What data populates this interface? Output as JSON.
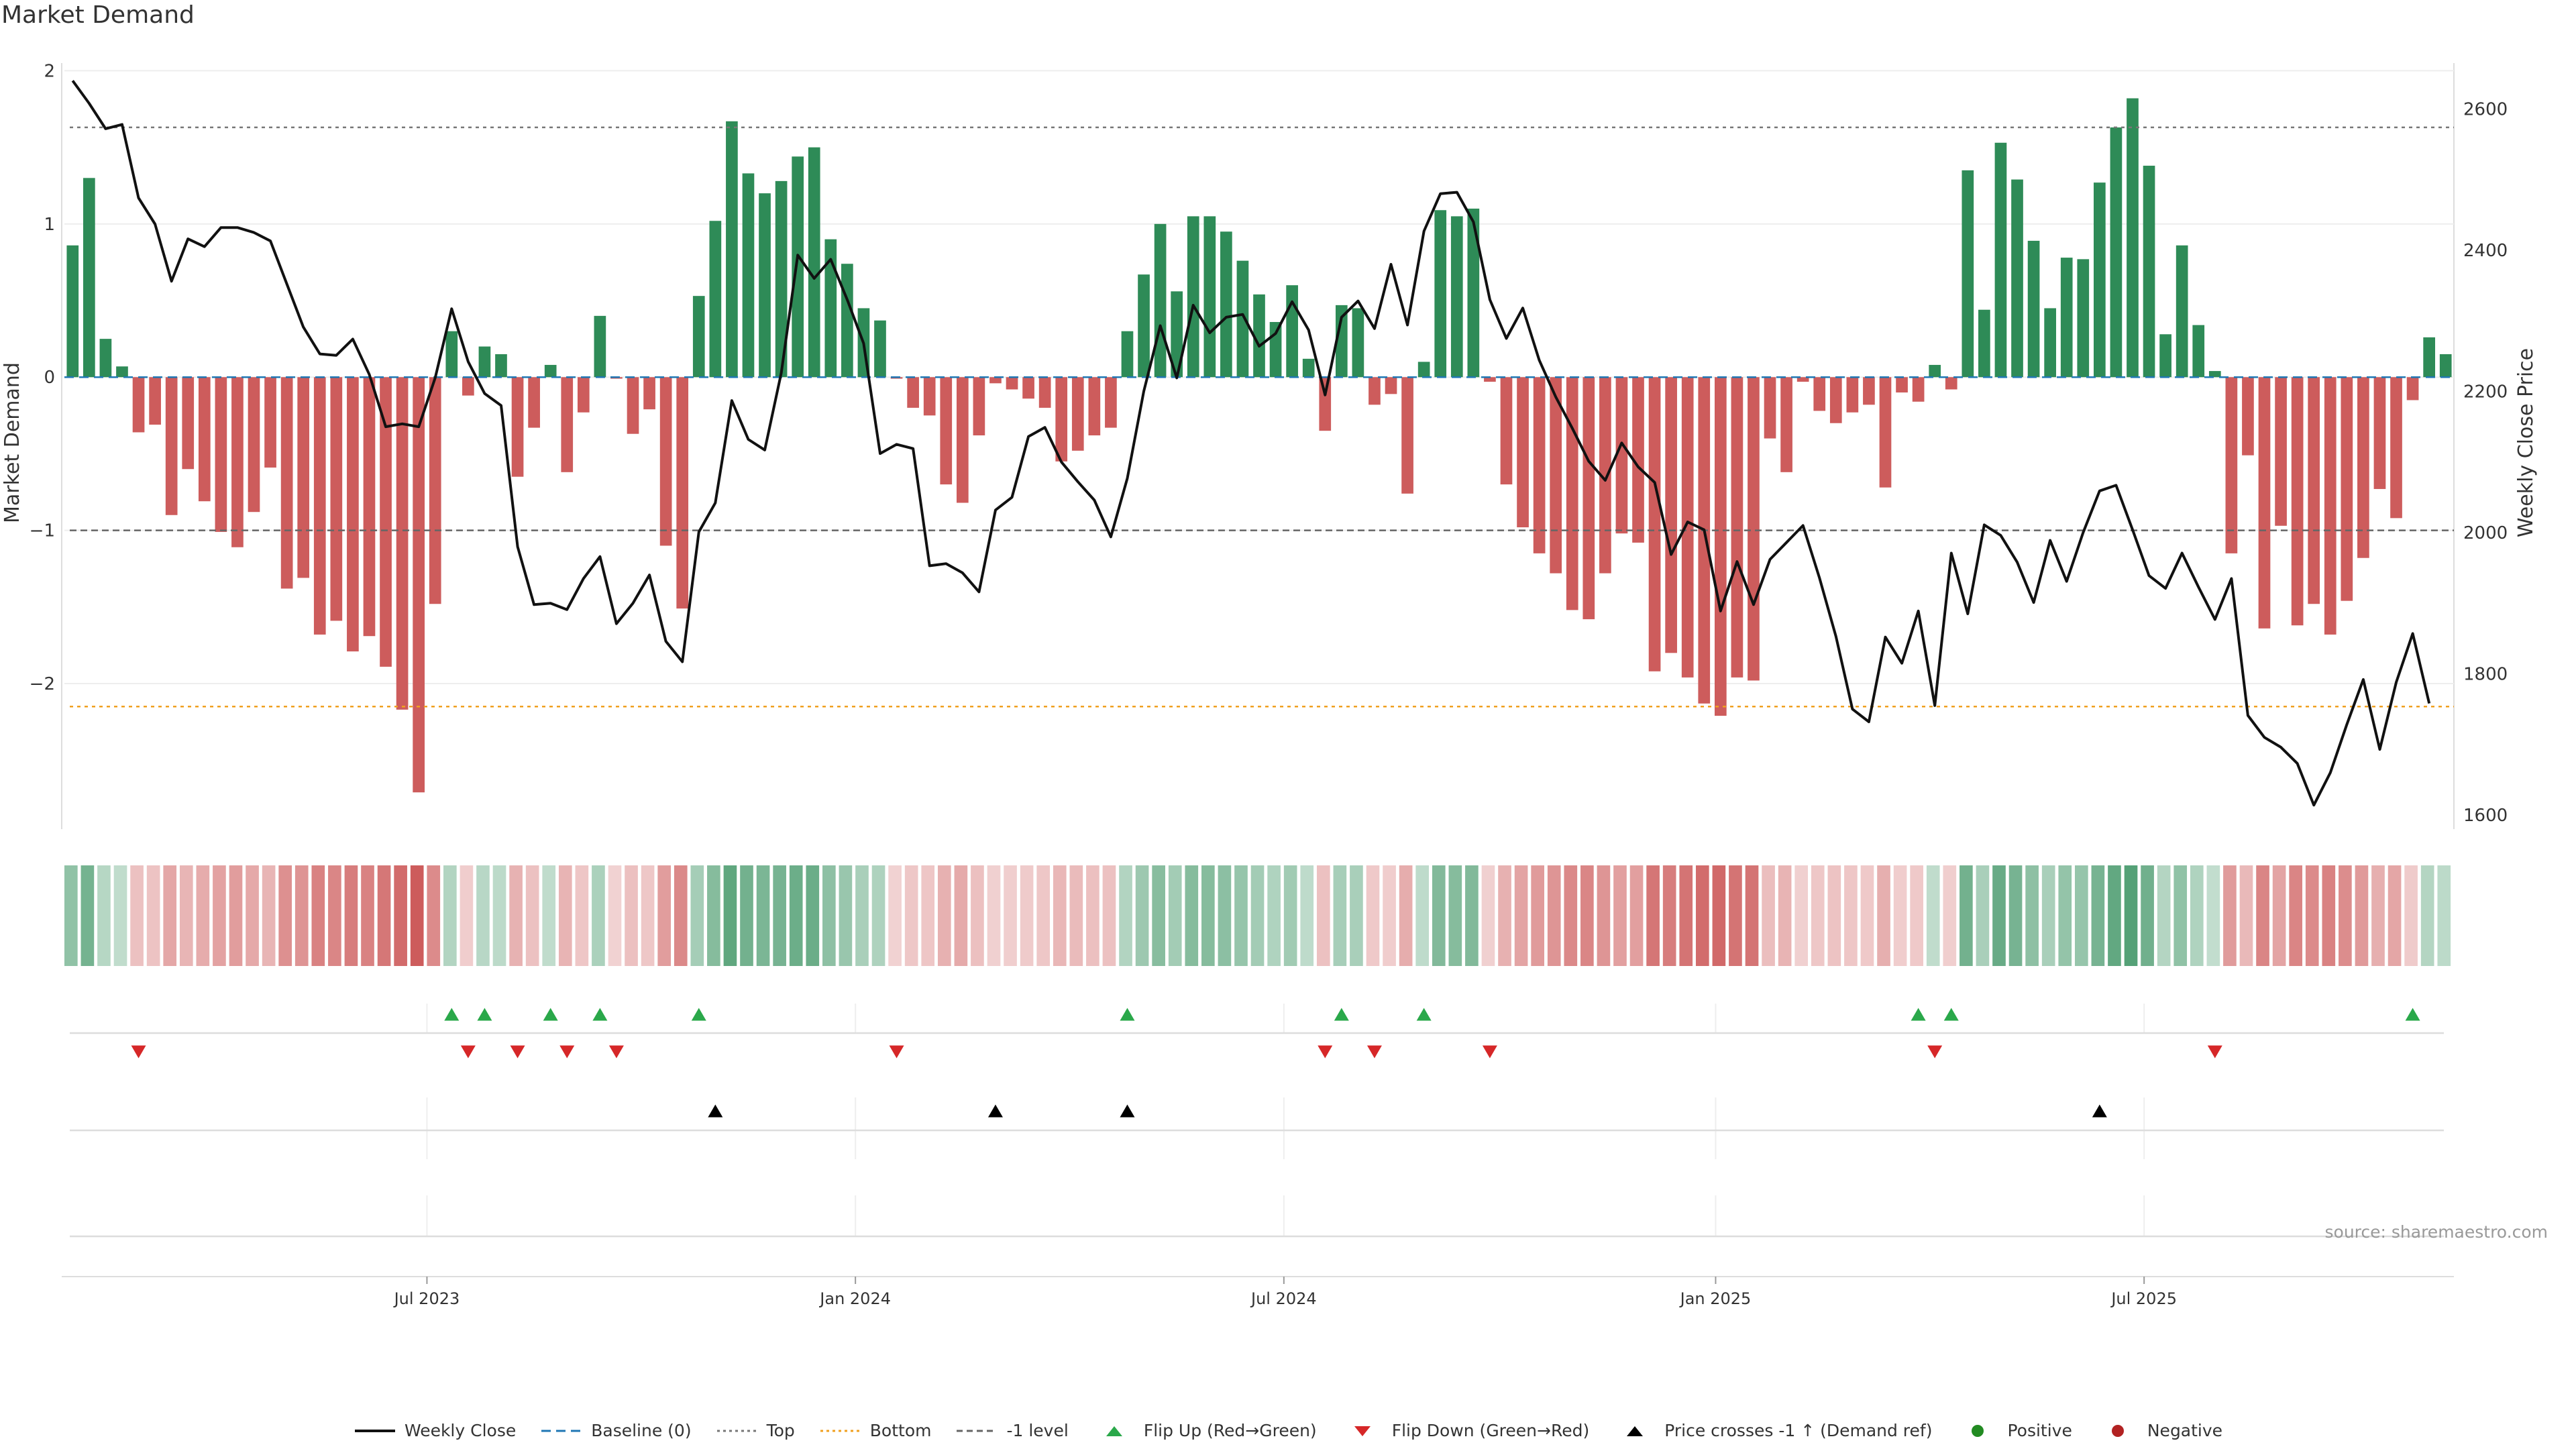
{
  "title": "Market Demand",
  "source": "source: sharemaestro.com",
  "colors": {
    "positive": "#2e8b57",
    "negative": "#cd5c5c",
    "line": "#111111",
    "top": "#888888",
    "bottom": "#f0a020",
    "flip_up": "#2aa84a",
    "flip_down": "#d62728",
    "cross": "#000000"
  },
  "chart_data": {
    "type": "bar",
    "title": "Market Demand",
    "ylabel": "Market Demand",
    "y2label": "Weekly Close Price",
    "ylim": [
      -2.95,
      2.05
    ],
    "y2lim": [
      1580,
      2665
    ],
    "yticks": [
      2,
      1,
      0,
      -1,
      -2
    ],
    "ytick_labels": [
      "2",
      "1",
      "0",
      "−1",
      "−2"
    ],
    "y2ticks": [
      2600,
      2400,
      2200,
      2000,
      1800,
      1600
    ],
    "y2tick_labels": [
      "2600",
      "2400",
      "2200",
      "2000",
      "1800",
      "1600"
    ],
    "xticks": [
      {
        "week": 21.5,
        "label": "Jul 2023"
      },
      {
        "week": 47.5,
        "label": "Jan 2024"
      },
      {
        "week": 73.5,
        "label": "Jul 2024"
      },
      {
        "week": 99.7,
        "label": "Jan 2025"
      },
      {
        "week": 125.7,
        "label": "Jul 2025"
      }
    ],
    "reference_lines": {
      "top": 1.63,
      "bottom": -2.15,
      "minus_one": -1.0,
      "baseline": 0
    },
    "demand": [
      0.86,
      1.3,
      0.25,
      0.07,
      -0.36,
      -0.31,
      -0.9,
      -0.6,
      -0.81,
      -1.01,
      -1.11,
      -0.88,
      -0.59,
      -1.38,
      -1.31,
      -1.68,
      -1.59,
      -1.79,
      -1.69,
      -1.89,
      -2.17,
      -2.71,
      -1.48,
      0.3,
      -0.12,
      0.2,
      0.15,
      -0.65,
      -0.33,
      0.08,
      -0.62,
      -0.23,
      0.4,
      -0.01,
      -0.37,
      -0.21,
      -1.1,
      -1.51,
      0.53,
      1.02,
      1.67,
      1.33,
      1.2,
      1.28,
      1.44,
      1.5,
      0.9,
      0.74,
      0.45,
      0.37,
      -0.01,
      -0.2,
      -0.25,
      -0.7,
      -0.82,
      -0.38,
      -0.04,
      -0.08,
      -0.14,
      -0.2,
      -0.55,
      -0.48,
      -0.38,
      -0.33,
      0.3,
      0.67,
      1.0,
      0.56,
      1.05,
      1.05,
      0.95,
      0.76,
      0.54,
      0.36,
      0.6,
      0.12,
      -0.35,
      0.47,
      0.45,
      -0.18,
      -0.11,
      -0.76,
      0.1,
      1.09,
      1.05,
      1.1,
      -0.03,
      -0.7,
      -0.98,
      -1.15,
      -1.28,
      -1.52,
      -1.58,
      -1.28,
      -1.02,
      -1.08,
      -1.92,
      -1.8,
      -1.96,
      -2.13,
      -2.21,
      -1.96,
      -1.98,
      -0.4,
      -0.62,
      -0.03,
      -0.22,
      -0.3,
      -0.23,
      -0.18,
      -0.72,
      -0.1,
      -0.16,
      0.08,
      -0.08,
      1.35,
      0.44,
      1.53,
      1.29,
      0.89,
      0.45,
      0.78,
      0.77,
      1.27,
      1.63,
      1.82,
      1.38,
      0.28,
      0.86,
      0.34,
      0.04,
      -1.15,
      -0.51,
      -1.64,
      -0.97,
      -1.62,
      -1.48,
      -1.68,
      -1.46,
      -1.18,
      -0.73,
      -0.92,
      -0.15,
      0.26,
      0.15
    ],
    "price": [
      2640,
      2608,
      2572,
      2578,
      2474,
      2437,
      2356,
      2416,
      2405,
      2432,
      2432,
      2425,
      2413,
      2352,
      2291,
      2253,
      2251,
      2274,
      2224,
      2150,
      2154,
      2150,
      2219,
      2317,
      2242,
      2197,
      2180,
      1980,
      1898,
      1900,
      1891,
      1935,
      1966,
      1871,
      1900,
      1940,
      1846,
      1817,
      2001,
      2042,
      2187,
      2132,
      2117,
      2226,
      2393,
      2360,
      2387,
      2330,
      2268,
      2112,
      2125,
      2119,
      1953,
      1956,
      1943,
      1916,
      2032,
      2050,
      2136,
      2149,
      2100,
      2072,
      2046,
      1994,
      2077,
      2200,
      2293,
      2219,
      2322,
      2283,
      2305,
      2309,
      2264,
      2282,
      2327,
      2287,
      2195,
      2305,
      2328,
      2289,
      2380,
      2294,
      2427,
      2480,
      2482,
      2440,
      2330,
      2275,
      2318,
      2244,
      2192,
      2148,
      2101,
      2074,
      2127,
      2093,
      2071,
      1969,
      2015,
      2004,
      1889,
      1959,
      1898,
      1962,
      1986,
      2010,
      1936,
      1853,
      1750,
      1732,
      1852,
      1815,
      1889,
      1755,
      1971,
      1885,
      2011,
      1996,
      1958,
      1901,
      1989,
      1931,
      2000,
      2059,
      2067,
      2004,
      1939,
      1921,
      1971,
      1923,
      1877,
      1935,
      1741,
      1710,
      1696,
      1673,
      1614,
      1660,
      1728,
      1792,
      1693,
      1788,
      1857,
      1758
    ],
    "flip_up_weeks": [
      23,
      25,
      29,
      32,
      38,
      64,
      77,
      82,
      112,
      114,
      142
    ],
    "flip_down_weeks": [
      4,
      24,
      27,
      30,
      33,
      50,
      76,
      79,
      86,
      113,
      130
    ],
    "cross_weeks": [
      39,
      56,
      64,
      123
    ],
    "legend": [
      {
        "name": "legend-weekly-close",
        "kind": "line",
        "label": "Weekly Close"
      },
      {
        "name": "legend-baseline",
        "kind": "dash-blue",
        "label": "Baseline (0)"
      },
      {
        "name": "legend-top",
        "kind": "dot-gray",
        "label": "Top"
      },
      {
        "name": "legend-bottom",
        "kind": "dot-orange",
        "label": "Bottom"
      },
      {
        "name": "legend-minus-one",
        "kind": "dash-gray",
        "label": "-1 level"
      },
      {
        "name": "legend-flip-up",
        "kind": "tri-up-green",
        "label": "Flip Up (Red→Green)"
      },
      {
        "name": "legend-flip-down",
        "kind": "tri-down-red",
        "label": "Flip Down (Green→Red)"
      },
      {
        "name": "legend-price-cross",
        "kind": "tri-up-black",
        "label": "Price crosses -1 ↑ (Demand ref)"
      },
      {
        "name": "legend-positive",
        "kind": "dot-green",
        "label": "Positive"
      },
      {
        "name": "legend-negative",
        "kind": "dot-red",
        "label": "Negative"
      }
    ]
  }
}
